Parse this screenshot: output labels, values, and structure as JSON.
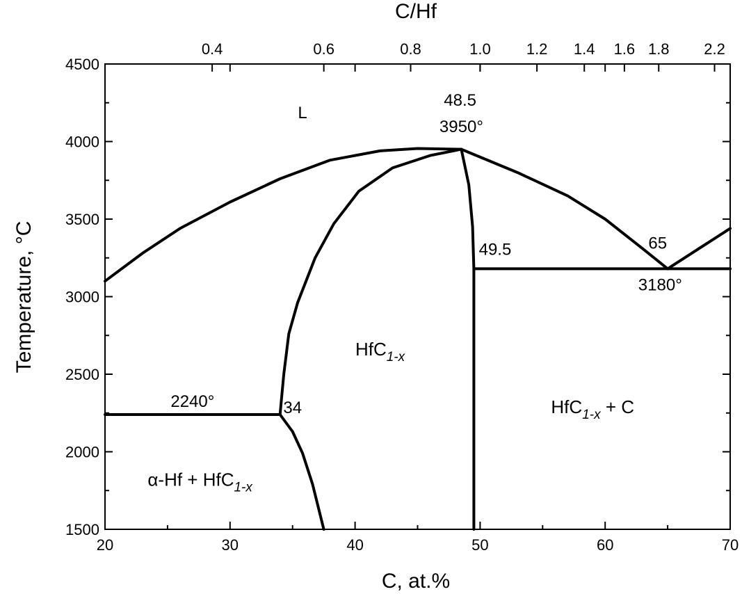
{
  "chart_data": {
    "type": "line",
    "xlabel": "C, at.%",
    "ylabel": "Temperature, °C",
    "top_xlabel": "C/Hf",
    "xlim": [
      20,
      70
    ],
    "ylim": [
      1500,
      4500
    ],
    "x_ticks": [
      20,
      30,
      40,
      50,
      60,
      70
    ],
    "y_ticks": [
      1500,
      2000,
      2500,
      3000,
      3500,
      4000,
      4500
    ],
    "top_ticks": [
      {
        "label": "0.4",
        "ratio": 0.4
      },
      {
        "label": "0.6",
        "ratio": 0.6
      },
      {
        "label": "0.8",
        "ratio": 0.8
      },
      {
        "label": "1.0",
        "ratio": 1.0
      },
      {
        "label": "1.2",
        "ratio": 1.2
      },
      {
        "label": "1.4",
        "ratio": 1.4
      },
      {
        "label": "1.6",
        "ratio": 1.6
      },
      {
        "label": "1.8",
        "ratio": 1.8
      },
      {
        "label": "2.2",
        "ratio": 2.2
      }
    ],
    "series": [
      {
        "id": "liquidus-left",
        "points": [
          [
            20,
            3100
          ],
          [
            23,
            3280
          ],
          [
            26,
            3440
          ],
          [
            30,
            3610
          ],
          [
            34,
            3760
          ],
          [
            38,
            3880
          ],
          [
            42,
            3940
          ],
          [
            45,
            3955
          ],
          [
            48.5,
            3950
          ]
        ]
      },
      {
        "id": "solidus-left",
        "points": [
          [
            34,
            2240
          ],
          [
            34.3,
            2500
          ],
          [
            34.7,
            2760
          ],
          [
            35.4,
            2960
          ],
          [
            36.8,
            3250
          ],
          [
            38.3,
            3470
          ],
          [
            40.3,
            3680
          ],
          [
            43,
            3830
          ],
          [
            46,
            3910
          ],
          [
            48.5,
            3950
          ]
        ]
      },
      {
        "id": "solidus-right",
        "points": [
          [
            48.5,
            3950
          ],
          [
            49.1,
            3720
          ],
          [
            49.4,
            3450
          ],
          [
            49.5,
            3180
          ],
          [
            49.5,
            1500
          ]
        ]
      },
      {
        "id": "liquidus-right",
        "points": [
          [
            48.5,
            3950
          ],
          [
            53,
            3800
          ],
          [
            57,
            3650
          ],
          [
            60,
            3500
          ],
          [
            63,
            3310
          ],
          [
            65,
            3180
          ],
          [
            70,
            3440
          ]
        ]
      },
      {
        "id": "eutectic-3180",
        "points": [
          [
            49.5,
            3180
          ],
          [
            70,
            3180
          ]
        ]
      },
      {
        "id": "eutectic-2240",
        "points": [
          [
            20,
            2240
          ],
          [
            34,
            2240
          ]
        ]
      },
      {
        "id": "solvus",
        "points": [
          [
            34,
            2240
          ],
          [
            35,
            2130
          ],
          [
            35.8,
            1990
          ],
          [
            36.6,
            1790
          ],
          [
            37.5,
            1500
          ]
        ]
      }
    ],
    "annotations": [
      {
        "text": "L",
        "x": 35.8,
        "y": 4150
      },
      {
        "text": "48.5",
        "x": 48.4,
        "y": 4230
      },
      {
        "text": "3950°",
        "x": 48.5,
        "y": 4060
      },
      {
        "text": "49.5",
        "x": 51.2,
        "y": 3270
      },
      {
        "text": "65",
        "x": 64.2,
        "y": 3310
      },
      {
        "text": "3180°",
        "x": 64.4,
        "y": 3040
      },
      {
        "text": "2240°",
        "x": 27,
        "y": 2290
      },
      {
        "text": "34",
        "x": 35,
        "y": 2250
      }
    ],
    "regions": [
      {
        "main": "HfC",
        "sub": "1-x",
        "tail": "",
        "x": 42,
        "y": 2620
      },
      {
        "main": "HfC",
        "sub": "1-x",
        "tail": " + C",
        "x": 59,
        "y": 2250
      },
      {
        "main": "α-Hf + HfC",
        "sub": "1-x",
        "tail": "",
        "x": 27.6,
        "y": 1780
      }
    ]
  }
}
